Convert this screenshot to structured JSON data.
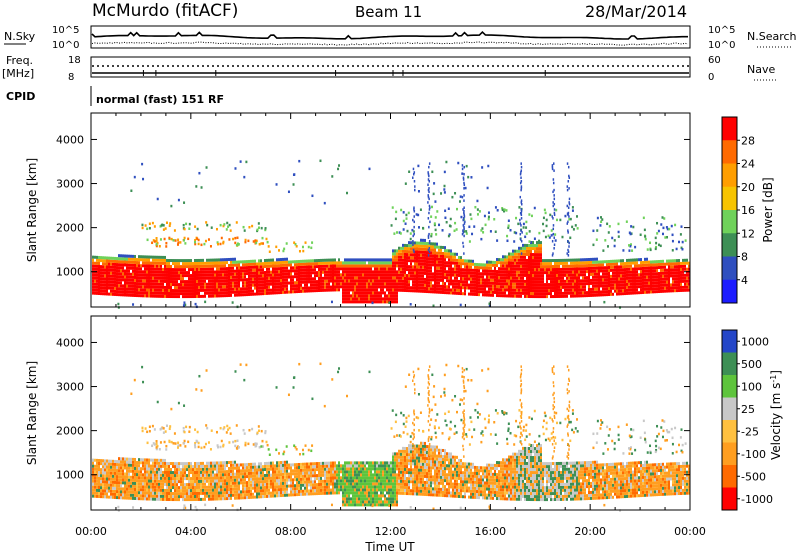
{
  "header": {
    "station": "McMurdo (fitACF)",
    "beam": "Beam 11",
    "date": "28/Mar/2014"
  },
  "noise_panel": {
    "left_label": "N.Sky",
    "right_label": "N.Search",
    "left_ticks": [
      "10^5",
      "10^0"
    ],
    "right_ticks": [
      "10^5",
      "10^0"
    ]
  },
  "freq_panel": {
    "left_label": "Freq.",
    "left_unit": "[MHz]",
    "right_label": "Nave",
    "left_ticks": [
      "18",
      "8"
    ],
    "right_ticks": [
      "60",
      "0"
    ]
  },
  "cpid": {
    "label": "CPID",
    "value": "normal (fast) 151 RF"
  },
  "chart_data": [
    {
      "type": "heatmap",
      "name": "power",
      "xlabel": "",
      "ylabel": "Slant Range [km]",
      "xlim": [
        0,
        24
      ],
      "ylim": [
        200,
        4600
      ],
      "yticks": [
        1000,
        2000,
        3000,
        4000
      ],
      "colorbar": {
        "label": "Power [dB]",
        "ticks": [
          "28",
          "24",
          "20",
          "16",
          "12",
          "8",
          "4"
        ],
        "colors": [
          "#ff0000",
          "#ff6a00",
          "#ff9e00",
          "#f7c400",
          "#6fd25a",
          "#3d8f55",
          "#2f4fbf",
          "#1c1cff"
        ]
      }
    },
    {
      "type": "heatmap",
      "name": "velocity",
      "xlabel": "Time UT",
      "ylabel": "Slant Range [km]",
      "xlim": [
        0,
        24
      ],
      "ylim": [
        200,
        4600
      ],
      "yticks": [
        1000,
        2000,
        3000,
        4000
      ],
      "xticks": [
        "00:00",
        "04:00",
        "08:00",
        "12:00",
        "16:00",
        "20:00",
        "00:00"
      ],
      "colorbar": {
        "label": "Velocity [m s-1]",
        "ticks": [
          "1000",
          "500",
          "100",
          "25",
          "-25",
          "-100",
          "-500",
          "-1000"
        ],
        "colors": [
          "#2446c8",
          "#3d8f55",
          "#5ec43c",
          "#c8c8c8",
          "#ffc040",
          "#ff9e20",
          "#ff6a00",
          "#ff0000"
        ]
      }
    }
  ]
}
